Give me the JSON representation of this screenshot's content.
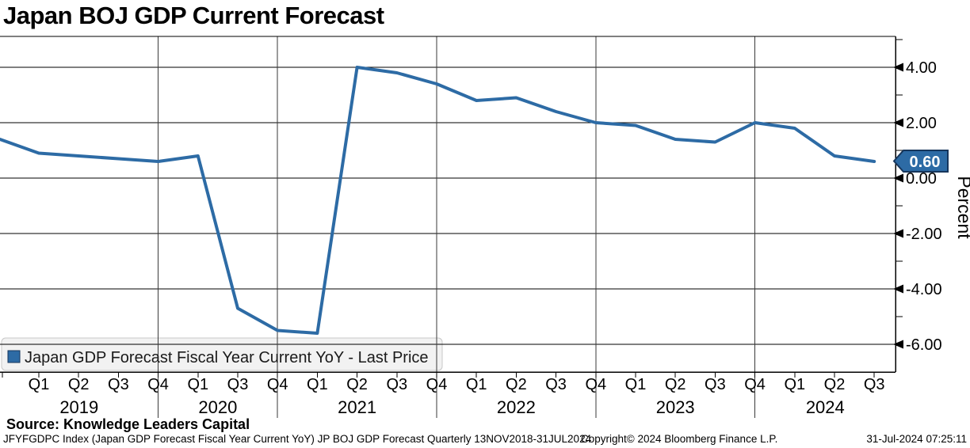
{
  "header": {
    "title": "Japan BOJ GDP Current Forecast"
  },
  "chart_data": {
    "type": "line",
    "title": "Japan BOJ GDP Current Forecast",
    "ylabel": "Percent",
    "ylim": [
      -7.0,
      5.2
    ],
    "grid": true,
    "legend_position": "bottom-left",
    "series_name": "Japan GDP Forecast Fiscal Year Current YoY - Last Price",
    "badge": {
      "label": "0.60"
    },
    "yticks_major": [
      {
        "value": 4,
        "label": "4.00"
      },
      {
        "value": 2,
        "label": "2.00"
      },
      {
        "value": 0,
        "label": "0.00"
      },
      {
        "value": -2,
        "label": "-2.00"
      },
      {
        "value": -4,
        "label": "-4.00"
      },
      {
        "value": -6,
        "label": "-6.00"
      }
    ],
    "yticks_minor": [
      5,
      3,
      1,
      -1,
      -3,
      -5
    ],
    "points": [
      {
        "year": "2018",
        "quarter": "Q4",
        "value": 1.4,
        "label_shown": false
      },
      {
        "year": "2019",
        "quarter": "Q1",
        "value": 0.9
      },
      {
        "year": "2019",
        "quarter": "Q2",
        "value": 0.8
      },
      {
        "year": "2019",
        "quarter": "Q3",
        "value": 0.7
      },
      {
        "year": "2019",
        "quarter": "Q4",
        "value": 0.6
      },
      {
        "year": "2020",
        "quarter": "Q1",
        "value": 0.8
      },
      {
        "year": "2020",
        "quarter": "Q3",
        "value": -4.7
      },
      {
        "year": "2020",
        "quarter": "Q4",
        "value": -5.5
      },
      {
        "year": "2021",
        "quarter": "Q1",
        "value": -5.6
      },
      {
        "year": "2021",
        "quarter": "Q2",
        "value": 4.0
      },
      {
        "year": "2021",
        "quarter": "Q3",
        "value": 3.8
      },
      {
        "year": "2021",
        "quarter": "Q4",
        "value": 3.4
      },
      {
        "year": "2022",
        "quarter": "Q1",
        "value": 2.8
      },
      {
        "year": "2022",
        "quarter": "Q2",
        "value": 2.9
      },
      {
        "year": "2022",
        "quarter": "Q3",
        "value": 2.4
      },
      {
        "year": "2022",
        "quarter": "Q4",
        "value": 2.0
      },
      {
        "year": "2023",
        "quarter": "Q1",
        "value": 1.9
      },
      {
        "year": "2023",
        "quarter": "Q2",
        "value": 1.4
      },
      {
        "year": "2023",
        "quarter": "Q3",
        "value": 1.3
      },
      {
        "year": "2023",
        "quarter": "Q4",
        "value": 2.0
      },
      {
        "year": "2024",
        "quarter": "Q1",
        "value": 1.8
      },
      {
        "year": "2024",
        "quarter": "Q2",
        "value": 0.8
      },
      {
        "year": "2024",
        "quarter": "Q3",
        "value": 0.6
      }
    ]
  },
  "legend": {
    "label": "Japan GDP Forecast Fiscal Year Current YoY - Last Price"
  },
  "source_line": "Source: Knowledge Leaders Capital",
  "footer": {
    "left": "JFYFGDPC Index (Japan GDP Forecast Fiscal Year Current YoY) JP BOJ GDP Forecast  Quarterly 13NOV2018-31JUL2024",
    "center": "Copyright© 2024 Bloomberg Finance L.P.",
    "right": "31-Jul-2024 07:25:11"
  },
  "colors": {
    "line": "#2d6ba5",
    "badge_fill": "#2d6ba5",
    "badge_border": "#16365c",
    "legend_bg": "#f2f2f2",
    "legend_border": "#c8c8c8",
    "grid": "#000000",
    "divider": "#3a3a3a",
    "text": "#000000",
    "badge_text": "#ffffff"
  }
}
